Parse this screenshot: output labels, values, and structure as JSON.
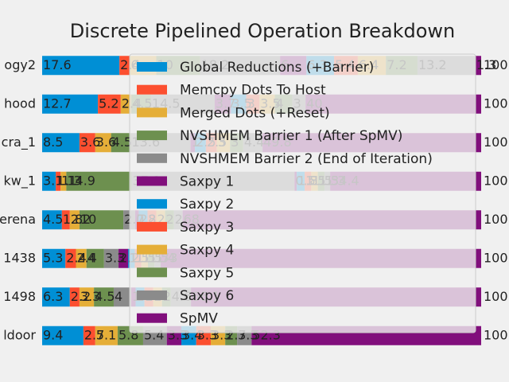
{
  "chart_data": {
    "type": "stacked_barh",
    "title": "Discrete Pipelined Operation Breakdown",
    "categories": [
      "ogy2",
      "hood",
      "cra_1",
      "kw_1",
      "erena",
      "1438",
      "1498",
      "ldoor"
    ],
    "xlim": [
      0,
      100
    ],
    "totals": [
      100,
      100,
      100,
      100,
      100,
      100,
      100,
      100
    ],
    "series": [
      {
        "name": "Global Reductions (+Barrier)",
        "color": "#008fd5",
        "values": [
          17.6,
          12.7,
          8.5,
          3.1,
          4.5,
          5.3,
          6.3,
          9.4
        ]
      },
      {
        "name": "Memcpy Dots To Host",
        "color": "#fc4f30",
        "values": [
          2.4,
          5.2,
          3.6,
          1.1,
          1.8,
          2.4,
          2.2,
          2.7
        ]
      },
      {
        "name": "Merged Dots (+Reset)",
        "color": "#e5ae38",
        "values": [
          6.0,
          2.4,
          3.6,
          1.3,
          2.2,
          2.4,
          3.3,
          5.1
        ]
      },
      {
        "name": "NVSHMEM Barrier 1 (After SpMV)",
        "color": "#6d904f",
        "values": [
          10.0,
          4.5,
          4.5,
          14.9,
          10.0,
          4.0,
          4.5,
          5.8
        ]
      },
      {
        "name": "NVSHMEM Barrier 2 (End of Iteration)",
        "color": "#8b8b8b",
        "values": [
          18.2,
          14.5,
          13.6,
          37.1,
          2.7,
          3.3,
          4.0,
          5.4
        ]
      },
      {
        "name": "Saxpy 1",
        "color": "#810f7c",
        "values": [
          6.0,
          3.7,
          1.0,
          0.5,
          0.8,
          2.2,
          1.0,
          3.3
        ]
      },
      {
        "name": "Saxpy 2",
        "color": "#008fd5",
        "values": [
          6.3,
          3.5,
          2.5,
          1.8,
          2.0,
          1.5,
          2.0,
          3.4
        ]
      },
      {
        "name": "Saxpy 3",
        "color": "#fc4f30",
        "values": [
          5.4,
          3.0,
          2.5,
          1.5,
          2.0,
          1.5,
          2.0,
          3.3
        ]
      },
      {
        "name": "Saxpy 4",
        "color": "#e5ae38",
        "values": [
          6.4,
          3.5,
          3.0,
          1.5,
          2.0,
          1.5,
          2.0,
          3.3
        ]
      },
      {
        "name": "Saxpy 5",
        "color": "#6d904f",
        "values": [
          7.2,
          4.0,
          3.0,
          1.5,
          2.0,
          1.5,
          2.0,
          2.7
        ]
      },
      {
        "name": "Saxpy 6",
        "color": "#8b8b8b",
        "values": [
          13.2,
          3.0,
          4.4,
          1.3,
          2.0,
          1.4,
          4.6,
          3.3
        ]
      },
      {
        "name": "SpMV",
        "color": "#810f7c",
        "values": [
          1.3,
          40.0,
          49.8,
          34.4,
          68.0,
          73.0,
          66.1,
          52.3
        ]
      }
    ]
  }
}
